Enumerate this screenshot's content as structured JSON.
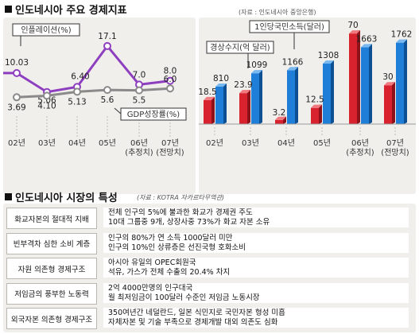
{
  "left": {
    "title": "인도네시아 주요 경제지표",
    "chart_data": {
      "type": "line",
      "categories": [
        "02년",
        "03년",
        "04년",
        "05년",
        "06년\n(추정치)",
        "07년\n(전망치)"
      ],
      "series": [
        {
          "name": "인플레이션(%)",
          "values": [
            10.03,
            5.06,
            6.4,
            17.1,
            7.0,
            8.0
          ],
          "labels": [
            "10.03",
            "5.06",
            "6.40",
            "17.1",
            "7.0",
            "8.0"
          ],
          "color": "#8e3fbf"
        },
        {
          "name": "GDP성장률(%)",
          "values": [
            3.69,
            4.1,
            5.13,
            5.6,
            5.5,
            6.0
          ],
          "labels": [
            "3.69",
            "4.10",
            "5.13",
            "5.6",
            "5.5",
            "6.0"
          ],
          "color": "#8a8a8a"
        }
      ],
      "ylim": [
        0,
        20
      ]
    }
  },
  "right": {
    "source": "(자료 : 인도네시아 중앙은행)",
    "chart_data": {
      "type": "bar",
      "categories": [
        "02년",
        "03년",
        "04년",
        "05년",
        "06년\n(추정치)",
        "07년\n(전망치)"
      ],
      "series": [
        {
          "name": "경상수지(억 달러)",
          "values": [
            18.5,
            23.9,
            3.2,
            12.5,
            70,
            30
          ],
          "labels": [
            "18.5",
            "23.9",
            "3.2",
            "12.5",
            "70",
            "30"
          ],
          "color": "#d8232e"
        },
        {
          "name": "1인당국민소득(달러)",
          "values": [
            810,
            1099,
            1166,
            1308,
            1663,
            1762
          ],
          "labels": [
            "810",
            "1099",
            "1166",
            "1308",
            "1663",
            "1762"
          ],
          "color": "#1f7fd8"
        }
      ],
      "ylim_red": [
        0,
        75
      ],
      "ylim_blue": [
        0,
        2100
      ]
    }
  },
  "table": {
    "title": "인도네시아 시장의 특성",
    "source": "(자료 : KOTRA 자카르타무역관)",
    "rows": [
      {
        "key": "화교자본의 절대적 지배",
        "lines": [
          "전체 인구의 5%에 불과한 화교가 경제권 주도",
          "10대 그룹중 9개, 상장사중 73%가 화교 자본 소유"
        ]
      },
      {
        "key": "빈부격차 심한 소비 계층",
        "lines": [
          "인구의 80%가 연 소득 1000달러 미만",
          "인구의 10%인 상류층은 선진국형 호화소비"
        ]
      },
      {
        "key": "자원 의존형 경제구조",
        "lines": [
          "아시아 유일의 OPEC회원국",
          "석유, 가스가 전체 수출의 20.4% 차지"
        ]
      },
      {
        "key": "저임금의 풍부한 노동력",
        "lines": [
          "2억 4000만명의 인구대국",
          "월 최저임금이 100달러 수준인 저임금 노동시장"
        ]
      },
      {
        "key": "외국자본 의존형 경제구조",
        "lines": [
          "350여년간 네덜란드, 일본 식민지로 국민자본 형성 미흡",
          "자체자본 및 기술 부족으로 경제개발 대외 의존도 심화"
        ]
      }
    ]
  }
}
